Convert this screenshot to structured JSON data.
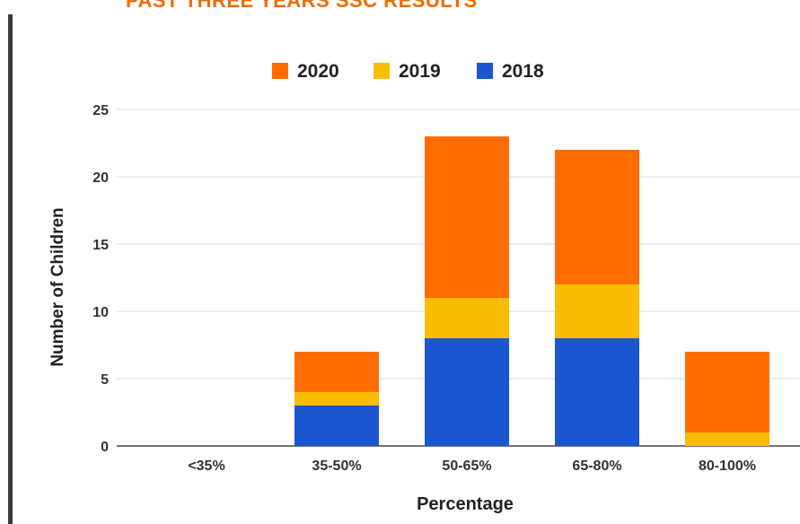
{
  "page": {
    "title": "PAST THREE YEARS SSC RESULTS"
  },
  "chart_data": {
    "type": "bar",
    "stacked": true,
    "title": "",
    "xlabel": "Percentage",
    "ylabel": "Number of Children",
    "ylim": [
      0,
      25
    ],
    "yticks": [
      0,
      5,
      10,
      15,
      20,
      25
    ],
    "grid": true,
    "legend_position": "top",
    "categories": [
      "<35%",
      "35-50%",
      "50-65%",
      "65-80%",
      "80-100%"
    ],
    "series": [
      {
        "name": "2018",
        "color": "#1a56d1",
        "values": [
          0,
          3,
          8,
          8,
          0
        ]
      },
      {
        "name": "2019",
        "color": "#fbbc04",
        "values": [
          0,
          1,
          3,
          4,
          1
        ]
      },
      {
        "name": "2020",
        "color": "#ff6d00",
        "values": [
          0,
          3,
          12,
          10,
          6
        ]
      }
    ],
    "legend_order": [
      "2020",
      "2019",
      "2018"
    ]
  }
}
